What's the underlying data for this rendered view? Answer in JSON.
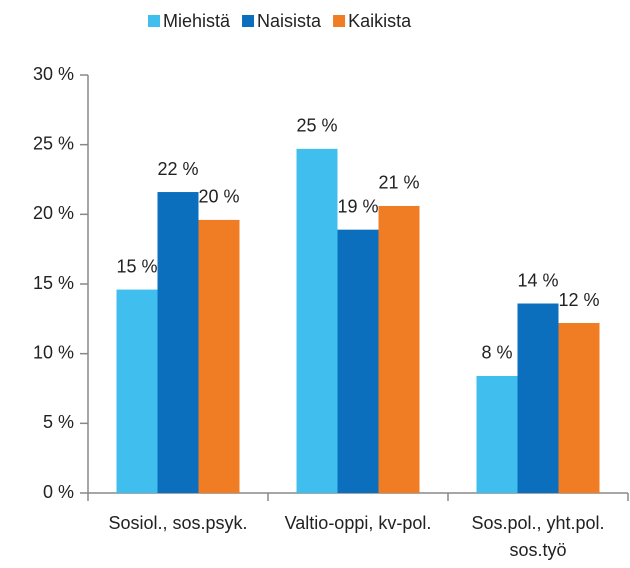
{
  "chart_data": {
    "type": "bar",
    "categories": [
      "Sosiol., sos.psyk.",
      "Valtio-oppi, kv-pol.",
      "Sos.pol., yht.pol. sos.työ"
    ],
    "series": [
      {
        "name": "Miehistä",
        "color": "#40bfee",
        "values": [
          14.6,
          24.7,
          8.4
        ],
        "value_labels": [
          "15 %",
          "25 %",
          "8 %"
        ]
      },
      {
        "name": "Naisista",
        "color": "#0c6fbe",
        "values": [
          21.6,
          18.9,
          13.6
        ],
        "value_labels": [
          "22 %",
          "19 %",
          "14 %"
        ]
      },
      {
        "name": "Kaikista",
        "color": "#f07d24",
        "values": [
          19.6,
          20.6,
          12.2
        ],
        "value_labels": [
          "20 %",
          "21 %",
          "12 %"
        ]
      }
    ],
    "ylim": [
      0,
      30
    ],
    "yticks": [
      {
        "value": 0,
        "label": "0 %"
      },
      {
        "value": 5,
        "label": "5 %"
      },
      {
        "value": 10,
        "label": "10 %"
      },
      {
        "value": 15,
        "label": "15 %"
      },
      {
        "value": 20,
        "label": "20 %"
      },
      {
        "value": 25,
        "label": "25 %"
      },
      {
        "value": 30,
        "label": "30 %"
      }
    ],
    "grid": false,
    "legend": "top"
  }
}
